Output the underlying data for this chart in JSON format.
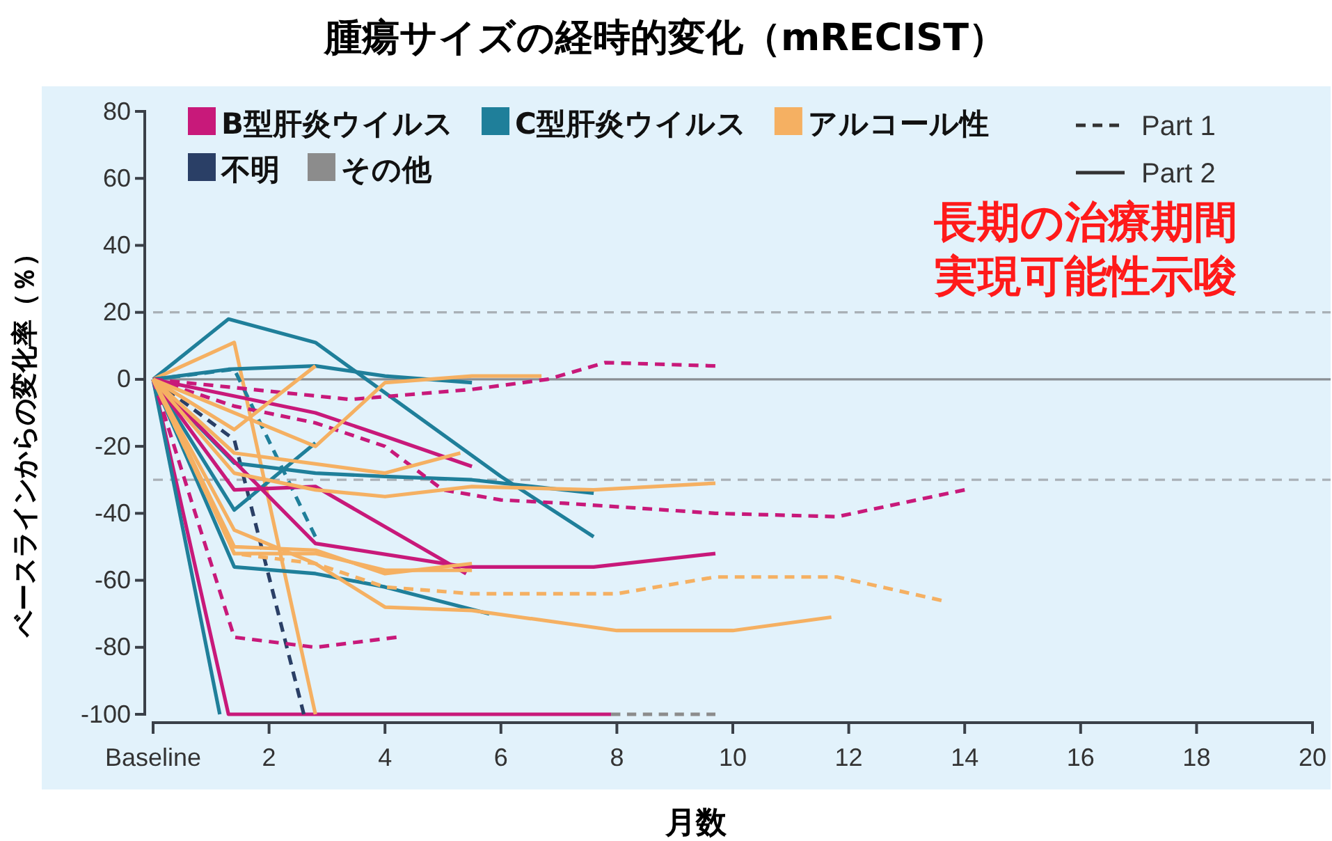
{
  "chart_data": {
    "type": "line",
    "title": "腫瘍サイズの経時的変化（mRECIST）",
    "xlabel": "月数",
    "ylabel": "ベースラインからの変化率（％）",
    "xlim": [
      0,
      20
    ],
    "xticks": [
      {
        "value": 0,
        "label": "Baseline"
      },
      2,
      4,
      6,
      8,
      10,
      12,
      14,
      16,
      18,
      20
    ],
    "ylim": [
      -100,
      80
    ],
    "yticks": [
      -100,
      -80,
      -60,
      -40,
      -20,
      0,
      20,
      40,
      60,
      80
    ],
    "grid": false,
    "legend": "top",
    "marker": "none",
    "ref_lines": [
      {
        "axis": "y",
        "value": 0,
        "color": "#8a8f94",
        "line_style": "solid"
      },
      {
        "axis": "y",
        "value": 20,
        "color": "#a9b0b6",
        "line_style": "dashed"
      },
      {
        "axis": "y",
        "value": -30,
        "color": "#a9b0b6",
        "line_style": "dashed"
      }
    ],
    "annotations": [
      "長期の治療期間",
      "実現可能性示唆"
    ],
    "series": [
      {
        "name": "B型肝炎ウイルス",
        "color": "#c8197a",
        "line_style": "solid",
        "x": [
          0,
          1.3,
          7.9
        ],
        "values": [
          0,
          -100,
          -100
        ]
      },
      {
        "name": "C型肝炎ウイルス",
        "color": "#1f7f9a",
        "line_style": "solid",
        "x": [
          0,
          1.3,
          2.8,
          6,
          7.6
        ],
        "values": [
          0,
          18,
          11,
          -29,
          -47
        ]
      },
      {
        "name": "アルコール性",
        "color": "#f5b062",
        "line_style": "solid",
        "x": [
          0,
          1.4,
          2.8
        ],
        "values": [
          0,
          11,
          -100
        ]
      },
      {
        "name": "不明",
        "color": "#2a3f66",
        "line_style": "dashed",
        "x": [
          0,
          1.4,
          2.6
        ],
        "values": [
          0,
          -18,
          -100
        ]
      },
      {
        "name": "その他",
        "color": "#8c8c8c",
        "line_style": "dashed",
        "x": [
          7.9,
          9.7
        ],
        "values": [
          -100,
          -100
        ]
      },
      {
        "name": "Part 1",
        "color": "#333333",
        "line_style": "dashed",
        "values": [
          null
        ]
      },
      {
        "name": "Part 2",
        "color": "#333333",
        "line_style": "solid",
        "values": [
          null
        ]
      },
      {
        "color": "#1f7f9a",
        "line_style": "solid",
        "x": [
          0,
          1.3,
          2.8,
          4,
          5.5
        ],
        "values": [
          0,
          3,
          4,
          1,
          -1
        ]
      },
      {
        "color": "#1f7f9a",
        "line_style": "solid",
        "x": [
          0,
          1.4,
          2.8,
          4,
          5.5,
          7.6
        ],
        "values": [
          0,
          -25,
          -28,
          -29,
          -30,
          -34
        ]
      },
      {
        "color": "#1f7f9a",
        "line_style": "solid",
        "x": [
          0,
          1.4,
          2.8
        ],
        "values": [
          0,
          -39,
          -19
        ]
      },
      {
        "color": "#1f7f9a",
        "line_style": "solid",
        "x": [
          0,
          1.4,
          2.8,
          4,
          5.8
        ],
        "values": [
          0,
          -56,
          -58,
          -62,
          -70
        ]
      },
      {
        "color": "#1f7f9a",
        "line_style": "solid",
        "x": [
          0,
          1.15
        ],
        "values": [
          0,
          -100
        ]
      },
      {
        "color": "#1f7f9a",
        "line_style": "dashed",
        "x": [
          0,
          1.4,
          2.8
        ],
        "values": [
          0,
          3,
          -47
        ]
      },
      {
        "color": "#c8197a",
        "line_style": "solid",
        "x": [
          0,
          1.4,
          2.8,
          5.4
        ],
        "values": [
          0,
          -33,
          -32,
          -58
        ]
      },
      {
        "color": "#c8197a",
        "line_style": "solid",
        "x": [
          0,
          2.8,
          5.4,
          7.6,
          9.7
        ],
        "values": [
          0,
          -49,
          -56,
          -56,
          -52
        ]
      },
      {
        "color": "#c8197a",
        "line_style": "solid",
        "x": [
          0,
          2.8,
          4,
          5.5
        ],
        "values": [
          0,
          -10,
          -17,
          -26
        ]
      },
      {
        "color": "#c8197a",
        "line_style": "dashed",
        "x": [
          0,
          1.4,
          2.8,
          4.2
        ],
        "values": [
          0,
          -77,
          -80,
          -77
        ]
      },
      {
        "color": "#c8197a",
        "line_style": "dashed",
        "x": [
          0,
          3.4,
          5.5,
          6.8,
          7.8,
          9.7
        ],
        "values": [
          0,
          -6,
          -3,
          0,
          5,
          4
        ]
      },
      {
        "color": "#c8197a",
        "line_style": "dashed",
        "x": [
          0,
          1.4,
          2.8,
          4,
          5,
          6,
          7.1,
          9.7,
          11.8,
          14
        ],
        "values": [
          0,
          -8,
          -13,
          -20,
          -33,
          -36,
          -37,
          -40,
          -41,
          -33
        ]
      },
      {
        "color": "#f5b062",
        "line_style": "solid",
        "x": [
          0,
          1.4,
          2.8
        ],
        "values": [
          0,
          -15,
          4
        ]
      },
      {
        "color": "#f5b062",
        "line_style": "solid",
        "x": [
          0,
          2.8,
          4,
          5.5,
          6.7
        ],
        "values": [
          0,
          -20,
          -1,
          1,
          1
        ]
      },
      {
        "color": "#f5b062",
        "line_style": "solid",
        "x": [
          0,
          1.4,
          2.8,
          4,
          5.5,
          7.6,
          9.7
        ],
        "values": [
          0,
          -28,
          -33,
          -35,
          -32,
          -33,
          -31
        ]
      },
      {
        "color": "#f5b062",
        "line_style": "solid",
        "x": [
          0,
          1.4,
          4,
          5.3
        ],
        "values": [
          0,
          -22,
          -28,
          -22
        ]
      },
      {
        "color": "#f5b062",
        "line_style": "solid",
        "x": [
          0,
          1.4,
          2.8,
          4,
          5.5
        ],
        "values": [
          0,
          -50,
          -51,
          -58,
          -55
        ]
      },
      {
        "color": "#f5b062",
        "line_style": "solid",
        "x": [
          0,
          1.4,
          2.8,
          4,
          5.5,
          8,
          10,
          11.7
        ],
        "values": [
          0,
          -45,
          -55,
          -68,
          -69,
          -75,
          -75,
          -71
        ]
      },
      {
        "color": "#f5b062",
        "line_style": "dashed",
        "x": [
          0,
          1.4,
          2.8,
          4,
          5.5,
          8,
          9.7,
          11.8,
          13.6
        ],
        "values": [
          0,
          -52,
          -55,
          -62,
          -64,
          -64,
          -59,
          -59,
          -66
        ]
      },
      {
        "color": "#f5b062",
        "line_style": "solid",
        "x": [
          0,
          1.4,
          2.8,
          4,
          5.5
        ],
        "values": [
          0,
          -52,
          -52,
          -57,
          -57
        ]
      }
    ]
  }
}
